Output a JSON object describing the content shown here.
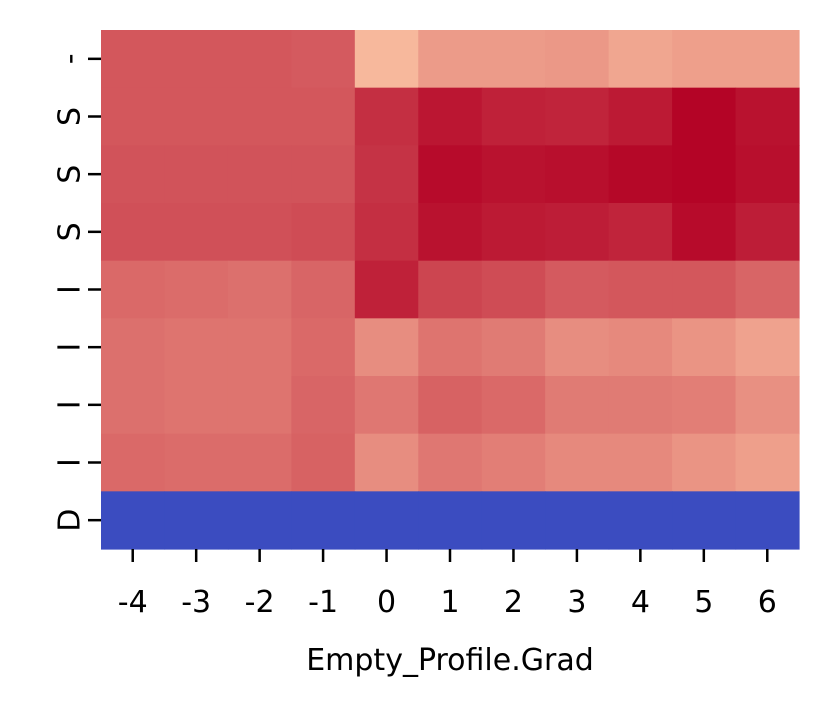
{
  "chart_data": {
    "type": "heatmap",
    "title": "",
    "xlabel": "Empty_Profile.Grad",
    "ylabel": "",
    "colormap": "coolwarm",
    "x_categories": [
      "-4",
      "-3",
      "-2",
      "-1",
      "0",
      "1",
      "2",
      "3",
      "4",
      "5",
      "6"
    ],
    "y_categories": [
      "-",
      "S",
      "S",
      "S",
      "I",
      "I",
      "I",
      "I",
      "D"
    ],
    "color_stops": [
      "#3b4cc0",
      "#f7b89c",
      "#b40426"
    ],
    "value_range": [
      0,
      1
    ],
    "values": [
      [
        0.77,
        0.77,
        0.77,
        0.76,
        0.5,
        0.58,
        0.58,
        0.59,
        0.55,
        0.57,
        0.57
      ],
      [
        0.77,
        0.77,
        0.77,
        0.77,
        0.88,
        0.95,
        0.92,
        0.91,
        0.94,
        1.0,
        0.96
      ],
      [
        0.78,
        0.78,
        0.78,
        0.78,
        0.87,
        0.98,
        0.96,
        0.97,
        0.99,
        1.0,
        0.97
      ],
      [
        0.79,
        0.79,
        0.79,
        0.8,
        0.88,
        0.96,
        0.94,
        0.93,
        0.91,
        0.98,
        0.93
      ],
      [
        0.72,
        0.71,
        0.7,
        0.73,
        0.92,
        0.82,
        0.8,
        0.76,
        0.77,
        0.77,
        0.73
      ],
      [
        0.7,
        0.69,
        0.69,
        0.72,
        0.62,
        0.69,
        0.67,
        0.62,
        0.63,
        0.6,
        0.56
      ],
      [
        0.7,
        0.69,
        0.69,
        0.73,
        0.68,
        0.74,
        0.72,
        0.67,
        0.67,
        0.66,
        0.61
      ],
      [
        0.72,
        0.71,
        0.71,
        0.74,
        0.62,
        0.68,
        0.66,
        0.63,
        0.63,
        0.6,
        0.57
      ],
      [
        0.0,
        0.0,
        0.0,
        0.0,
        0.0,
        0.0,
        0.0,
        0.0,
        0.0,
        0.0,
        0.0
      ]
    ]
  }
}
